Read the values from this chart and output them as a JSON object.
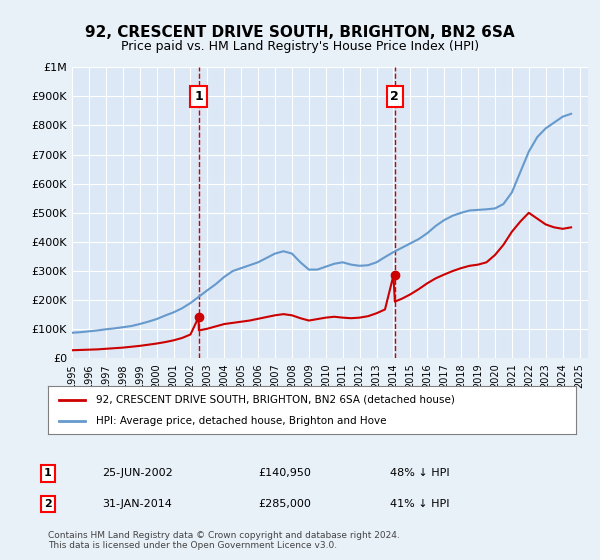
{
  "title": "92, CRESCENT DRIVE SOUTH, BRIGHTON, BN2 6SA",
  "subtitle": "Price paid vs. HM Land Registry's House Price Index (HPI)",
  "background_color": "#e8f0f8",
  "plot_bg_color": "#dce8f5",
  "ylim": [
    0,
    1000000
  ],
  "yticks": [
    0,
    100000,
    200000,
    300000,
    400000,
    500000,
    600000,
    700000,
    800000,
    900000,
    1000000
  ],
  "ytick_labels": [
    "£0",
    "£100K",
    "£200K",
    "£300K",
    "£400K",
    "£500K",
    "£600K",
    "£700K",
    "£800K",
    "£900K",
    "£1M"
  ],
  "xlim_start": 1995.0,
  "xlim_end": 2025.5,
  "transaction1_x": 2002.48,
  "transaction1_y": 140950,
  "transaction1_label": "1",
  "transaction2_x": 2014.08,
  "transaction2_y": 285000,
  "transaction2_label": "2",
  "hpi_years": [
    1995,
    1995.5,
    1996,
    1996.5,
    1997,
    1997.5,
    1998,
    1998.5,
    1999,
    1999.5,
    2000,
    2000.5,
    2001,
    2001.5,
    2002,
    2002.5,
    2003,
    2003.5,
    2004,
    2004.5,
    2005,
    2005.5,
    2006,
    2006.5,
    2007,
    2007.5,
    2008,
    2008.5,
    2009,
    2009.5,
    2010,
    2010.5,
    2011,
    2011.5,
    2012,
    2012.5,
    2013,
    2013.5,
    2014,
    2014.5,
    2015,
    2015.5,
    2016,
    2016.5,
    2017,
    2017.5,
    2018,
    2018.5,
    2019,
    2019.5,
    2020,
    2020.5,
    2021,
    2021.5,
    2022,
    2022.5,
    2023,
    2023.5,
    2024,
    2024.5
  ],
  "hpi_values": [
    88000,
    90000,
    93000,
    96000,
    100000,
    103000,
    107000,
    111000,
    118000,
    126000,
    135000,
    147000,
    158000,
    172000,
    190000,
    212000,
    234000,
    255000,
    280000,
    300000,
    310000,
    320000,
    330000,
    345000,
    360000,
    368000,
    360000,
    330000,
    305000,
    305000,
    315000,
    325000,
    330000,
    322000,
    318000,
    320000,
    330000,
    348000,
    365000,
    380000,
    395000,
    410000,
    430000,
    455000,
    475000,
    490000,
    500000,
    508000,
    510000,
    512000,
    515000,
    530000,
    570000,
    640000,
    710000,
    760000,
    790000,
    810000,
    830000,
    840000
  ],
  "red_years": [
    1995,
    1995.5,
    1996,
    1996.5,
    1997,
    1997.5,
    1998,
    1998.5,
    1999,
    1999.5,
    2000,
    2000.5,
    2001,
    2001.5,
    2002,
    2002.48,
    2002.5,
    2003,
    2003.5,
    2004,
    2004.5,
    2005,
    2005.5,
    2006,
    2006.5,
    2007,
    2007.5,
    2008,
    2008.5,
    2009,
    2009.5,
    2010,
    2010.5,
    2011,
    2011.5,
    2012,
    2012.5,
    2013,
    2013.5,
    2014,
    2014.08,
    2014.5,
    2015,
    2015.5,
    2016,
    2016.5,
    2017,
    2017.5,
    2018,
    2018.5,
    2019,
    2019.5,
    2020,
    2020.5,
    2021,
    2021.5,
    2022,
    2022.5,
    2023,
    2023.5,
    2024,
    2024.5
  ],
  "red_values": [
    28000,
    29000,
    30000,
    31000,
    33000,
    35000,
    37000,
    40000,
    43000,
    47000,
    51000,
    56000,
    62000,
    70000,
    82000,
    140950,
    96000,
    102000,
    110000,
    118000,
    122000,
    126000,
    130000,
    136000,
    142000,
    148000,
    152000,
    148000,
    138000,
    130000,
    135000,
    140000,
    143000,
    140000,
    138000,
    140000,
    145000,
    155000,
    168000,
    285000,
    195000,
    205000,
    220000,
    238000,
    258000,
    275000,
    288000,
    300000,
    310000,
    318000,
    322000,
    330000,
    355000,
    390000,
    435000,
    470000,
    500000,
    480000,
    460000,
    450000,
    445000,
    450000
  ],
  "legend1_label": "92, CRESCENT DRIVE SOUTH, BRIGHTON, BN2 6SA (detached house)",
  "legend2_label": "HPI: Average price, detached house, Brighton and Hove",
  "ann1_date": "25-JUN-2002",
  "ann1_price": "£140,950",
  "ann1_hpi": "48% ↓ HPI",
  "ann2_date": "31-JAN-2014",
  "ann2_price": "£285,000",
  "ann2_hpi": "41% ↓ HPI",
  "footer": "Contains HM Land Registry data © Crown copyright and database right 2024.\nThis data is licensed under the Open Government Licence v3.0.",
  "red_color": "#cc0000",
  "blue_color": "#6699cc",
  "dashed_color": "#cc0000"
}
